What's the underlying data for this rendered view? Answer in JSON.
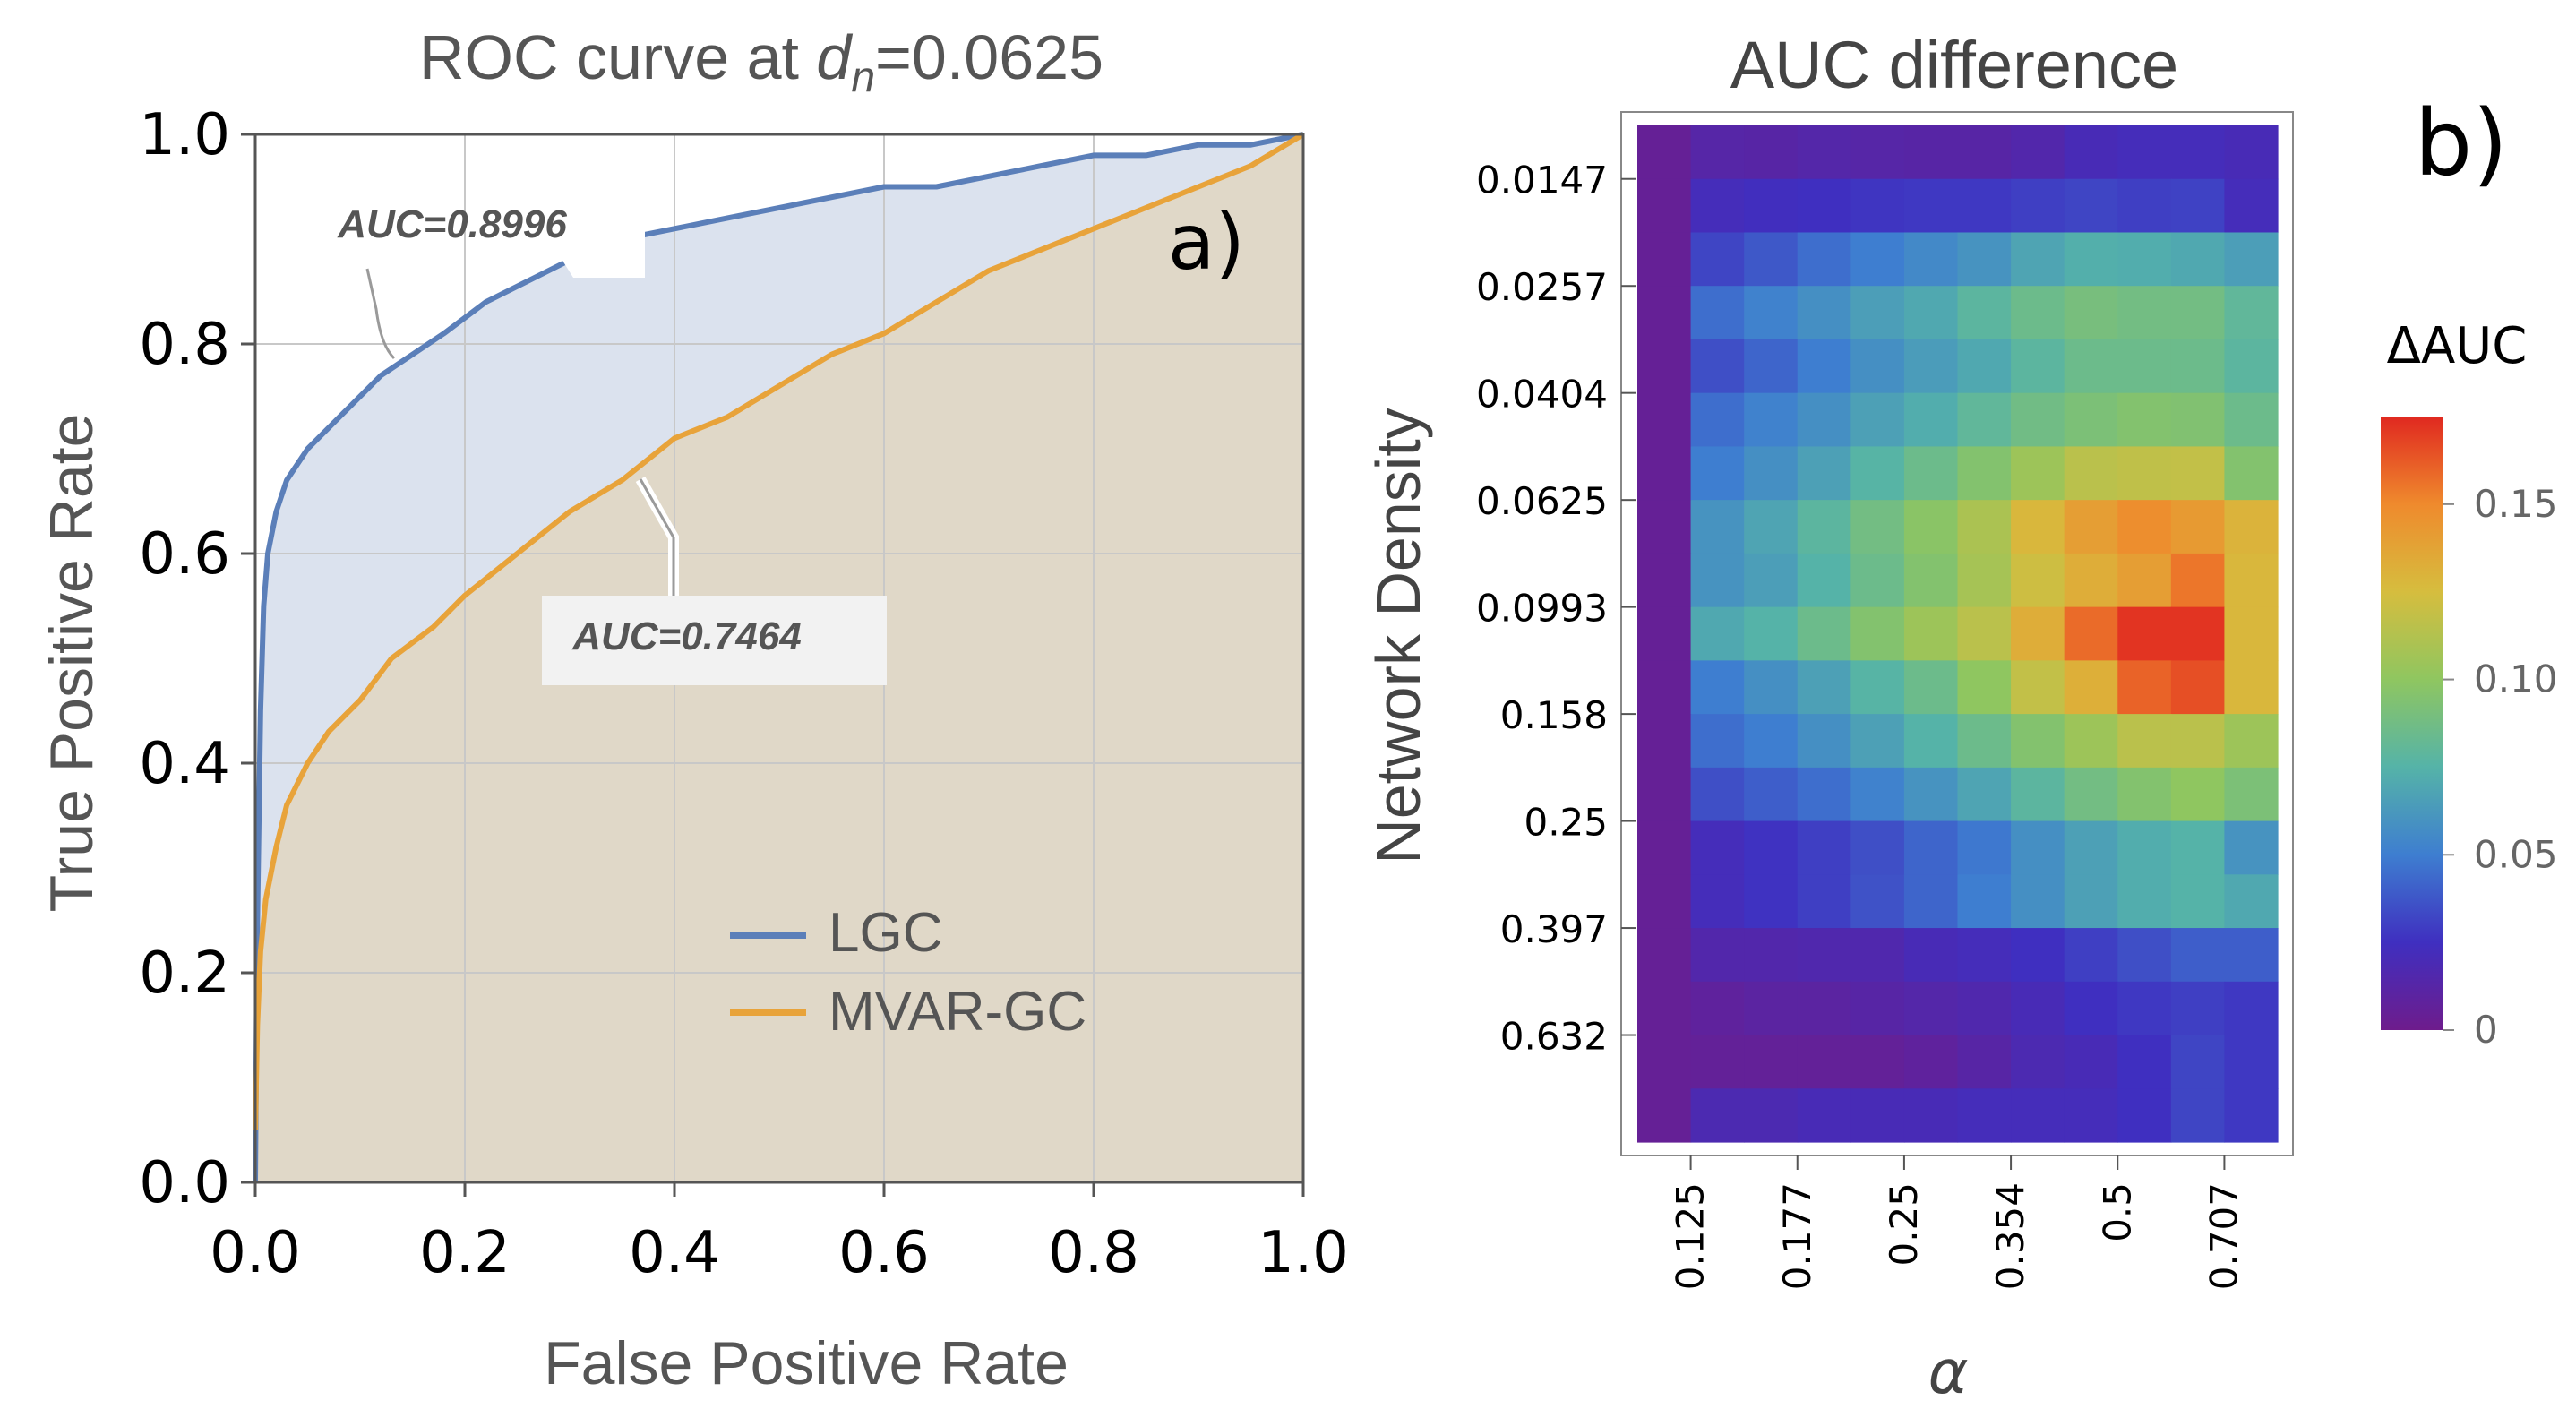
{
  "chart_data": [
    {
      "type": "line",
      "panel_label": "a)",
      "title_prefix": "ROC curve at ",
      "title_var": "d",
      "title_sub": "n",
      "title_suffix": "=0.0625",
      "xlabel": "False Positive Rate",
      "ylabel": "True Positive Rate",
      "xlim": [
        0,
        1
      ],
      "ylim": [
        0,
        1
      ],
      "xticks": [
        "0.0",
        "0.2",
        "0.4",
        "0.6",
        "0.8",
        "1.0"
      ],
      "yticks": [
        "0.0",
        "0.2",
        "0.4",
        "0.6",
        "0.8",
        "1.0"
      ],
      "grid": true,
      "legend_position": "bottom-right",
      "series": [
        {
          "name": "LGC",
          "color": "#5b7fb9",
          "fill": "#dbe2ee",
          "auc_label": "AUC=0.8996",
          "x": [
            0,
            0.002,
            0.005,
            0.008,
            0.012,
            0.02,
            0.03,
            0.05,
            0.07,
            0.09,
            0.12,
            0.15,
            0.18,
            0.22,
            0.26,
            0.3,
            0.35,
            0.4,
            0.45,
            0.5,
            0.55,
            0.6,
            0.65,
            0.7,
            0.75,
            0.8,
            0.85,
            0.9,
            0.95,
            1.0
          ],
          "y": [
            0.0,
            0.25,
            0.45,
            0.55,
            0.6,
            0.64,
            0.67,
            0.7,
            0.72,
            0.74,
            0.77,
            0.79,
            0.81,
            0.84,
            0.86,
            0.88,
            0.9,
            0.91,
            0.92,
            0.93,
            0.94,
            0.95,
            0.95,
            0.96,
            0.97,
            0.98,
            0.98,
            0.99,
            0.99,
            1.0
          ]
        },
        {
          "name": "MVAR-GC",
          "color": "#e8a33a",
          "fill": "#e0d8c8",
          "auc_label": "AUC=0.7464",
          "x": [
            0,
            0.002,
            0.005,
            0.01,
            0.02,
            0.03,
            0.05,
            0.07,
            0.1,
            0.13,
            0.17,
            0.2,
            0.25,
            0.3,
            0.35,
            0.4,
            0.45,
            0.5,
            0.55,
            0.6,
            0.65,
            0.7,
            0.75,
            0.8,
            0.85,
            0.9,
            0.95,
            1.0
          ],
          "y": [
            0.05,
            0.15,
            0.22,
            0.27,
            0.32,
            0.36,
            0.4,
            0.43,
            0.46,
            0.5,
            0.53,
            0.56,
            0.6,
            0.64,
            0.67,
            0.71,
            0.73,
            0.76,
            0.79,
            0.81,
            0.84,
            0.87,
            0.89,
            0.91,
            0.93,
            0.95,
            0.97,
            1.0
          ]
        }
      ]
    },
    {
      "type": "heatmap",
      "panel_label": "b)",
      "title": "AUC difference",
      "xlabel": "α",
      "ylabel": "Network Density",
      "x_ticks": [
        "0.125",
        "0.177",
        "0.25",
        "0.354",
        "0.5",
        "0.707"
      ],
      "y_ticks": [
        "0.0147",
        "0.0257",
        "0.0404",
        "0.0625",
        "0.0993",
        "0.158",
        "0.25",
        "0.397",
        "0.632"
      ],
      "colorbar_label": "ΔAUC",
      "colorbar_ticks": [
        "0",
        "0.05",
        "0.10",
        "0.15"
      ],
      "colorbar_range": [
        0,
        0.175
      ],
      "colorscale": [
        "#6e1c8c",
        "#3f2fc0",
        "#3e7ed0",
        "#55b3a8",
        "#8fc660",
        "#d6bd3e",
        "#ef8a2d",
        "#e02820"
      ],
      "values": [
        [
          0.005,
          0.013,
          0.012,
          0.014,
          0.013,
          0.012,
          0.012,
          0.015,
          0.02,
          0.022,
          0.022,
          0.02
        ],
        [
          0.005,
          0.022,
          0.024,
          0.025,
          0.027,
          0.028,
          0.028,
          0.03,
          0.032,
          0.03,
          0.031,
          0.022
        ],
        [
          0.005,
          0.032,
          0.038,
          0.045,
          0.05,
          0.055,
          0.06,
          0.068,
          0.073,
          0.072,
          0.07,
          0.065
        ],
        [
          0.005,
          0.045,
          0.052,
          0.058,
          0.065,
          0.07,
          0.078,
          0.085,
          0.09,
          0.088,
          0.088,
          0.08
        ],
        [
          0.005,
          0.035,
          0.042,
          0.05,
          0.058,
          0.064,
          0.07,
          0.078,
          0.085,
          0.085,
          0.085,
          0.078
        ],
        [
          0.005,
          0.045,
          0.052,
          0.058,
          0.066,
          0.072,
          0.08,
          0.087,
          0.092,
          0.095,
          0.094,
          0.085
        ],
        [
          0.005,
          0.05,
          0.058,
          0.066,
          0.076,
          0.085,
          0.095,
          0.105,
          0.115,
          0.117,
          0.118,
          0.095
        ],
        [
          0.005,
          0.06,
          0.068,
          0.078,
          0.088,
          0.098,
          0.11,
          0.128,
          0.14,
          0.148,
          0.142,
          0.13
        ],
        [
          0.005,
          0.06,
          0.065,
          0.075,
          0.085,
          0.095,
          0.108,
          0.122,
          0.133,
          0.14,
          0.155,
          0.128
        ],
        [
          0.005,
          0.07,
          0.075,
          0.085,
          0.095,
          0.105,
          0.115,
          0.133,
          0.158,
          0.172,
          0.172,
          0.128
        ],
        [
          0.005,
          0.05,
          0.058,
          0.066,
          0.076,
          0.085,
          0.1,
          0.118,
          0.132,
          0.16,
          0.165,
          0.128
        ],
        [
          0.005,
          0.045,
          0.05,
          0.058,
          0.066,
          0.075,
          0.085,
          0.095,
          0.105,
          0.115,
          0.115,
          0.105
        ],
        [
          0.005,
          0.035,
          0.04,
          0.045,
          0.052,
          0.06,
          0.068,
          0.078,
          0.088,
          0.095,
          0.1,
          0.092
        ],
        [
          0.005,
          0.022,
          0.026,
          0.03,
          0.035,
          0.042,
          0.048,
          0.058,
          0.066,
          0.072,
          0.075,
          0.06
        ],
        [
          0.005,
          0.022,
          0.026,
          0.03,
          0.036,
          0.042,
          0.05,
          0.058,
          0.066,
          0.072,
          0.075,
          0.07
        ],
        [
          0.005,
          0.015,
          0.015,
          0.016,
          0.016,
          0.02,
          0.022,
          0.025,
          0.03,
          0.035,
          0.04,
          0.04
        ],
        [
          0.005,
          0.008,
          0.01,
          0.01,
          0.012,
          0.014,
          0.016,
          0.02,
          0.025,
          0.028,
          0.03,
          0.028
        ],
        [
          0.005,
          0.006,
          0.006,
          0.006,
          0.006,
          0.008,
          0.012,
          0.018,
          0.02,
          0.025,
          0.032,
          0.028
        ],
        [
          0.005,
          0.018,
          0.018,
          0.02,
          0.02,
          0.02,
          0.022,
          0.022,
          0.022,
          0.025,
          0.032,
          0.028
        ]
      ]
    }
  ]
}
